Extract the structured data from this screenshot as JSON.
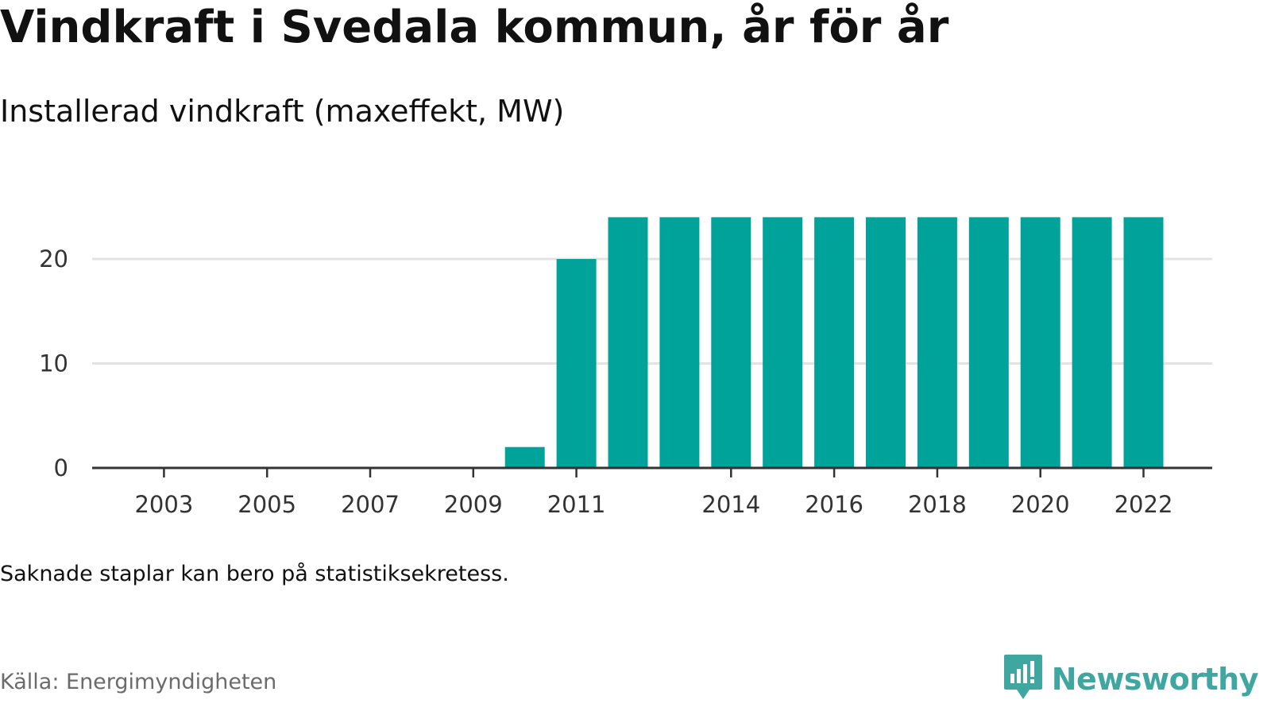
{
  "title": "Vindkraft i Svedala kommun, år för år",
  "subtitle": "Installerad vindkraft (maxeffekt, MW)",
  "note": "Saknade staplar kan bero på statistiksekretess.",
  "source": "Källa: Energimyndigheten",
  "brand": {
    "name": "Newsworthy",
    "logo_icon": "bar-chart-speech-bubble-icon",
    "color": "#3fa7a0"
  },
  "colors": {
    "bar": "#00a39a",
    "grid": "#e3e3e3",
    "axis": "#333333"
  },
  "chart_data": {
    "type": "bar",
    "title": "Vindkraft i Svedala kommun, år för år",
    "subtitle": "Installerad vindkraft (maxeffekt, MW)",
    "categories": [
      "2002",
      "2003",
      "2004",
      "2005",
      "2006",
      "2007",
      "2008",
      "2009",
      "2010",
      "2011",
      "2012",
      "2013",
      "2014",
      "2015",
      "2016",
      "2017",
      "2018",
      "2019",
      "2020",
      "2021",
      "2022"
    ],
    "values": [
      0,
      0,
      0,
      0,
      0,
      0,
      0,
      0,
      2,
      20,
      24,
      24,
      24,
      24,
      24,
      24,
      24,
      24,
      24,
      24,
      24
    ],
    "x_tick_labels": [
      "2003",
      "2005",
      "2007",
      "2009",
      "2011",
      "2014",
      "2016",
      "2018",
      "2020",
      "2022"
    ],
    "y_ticks": [
      0,
      10,
      20
    ],
    "ylim": [
      0,
      24
    ],
    "xlabel": "",
    "ylabel": "",
    "grid": "horizontal",
    "legend": "none"
  }
}
